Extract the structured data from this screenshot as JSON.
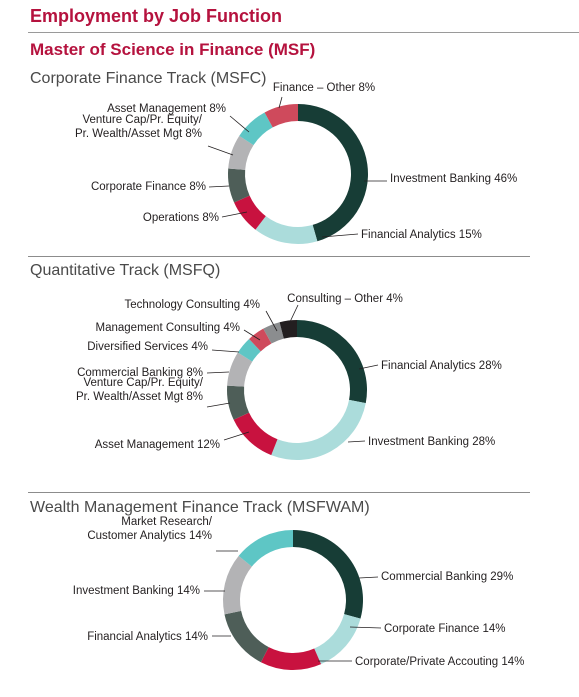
{
  "header": {
    "title": "Employment by Job Function",
    "program": "Master of Science in Finance (MSF)"
  },
  "colors": {
    "accent": "#b5123e",
    "dark_green": "#173d36",
    "light_teal": "#abdcdb",
    "crimson": "#c8123f",
    "gray_green": "#4e5e58",
    "gray": "#b3b3b5",
    "teal": "#5ec6c5",
    "rose": "#cf4a5c",
    "dark_gray": "#8b8d8f",
    "black": "#231f20"
  },
  "chart_data": [
    {
      "type": "pie",
      "title": "Corporate Finance Track (MSFC)",
      "slices": [
        {
          "label": "Investment Banking 46%",
          "value": 46,
          "color": "#173d36"
        },
        {
          "label": "Financial Analytics 15%",
          "value": 15,
          "color": "#abdcdb"
        },
        {
          "label": "Operations 8%",
          "value": 8,
          "color": "#c8123f"
        },
        {
          "label": "Corporate Finance 8%",
          "value": 8,
          "color": "#4e5e58"
        },
        {
          "label": "Venture Cap/Pr. Equity/\nPr. Wealth/Asset Mgt 8%",
          "value": 8,
          "color": "#b3b3b5"
        },
        {
          "label": "Asset Management 8%",
          "value": 8,
          "color": "#5ec6c5"
        },
        {
          "label": "Finance – Other 8%",
          "value": 8,
          "color": "#cf4a5c"
        }
      ]
    },
    {
      "type": "pie",
      "title": "Quantitative Track (MSFQ)",
      "slices": [
        {
          "label": "Financial Analytics 28%",
          "value": 28,
          "color": "#173d36"
        },
        {
          "label": "Investment Banking 28%",
          "value": 28,
          "color": "#abdcdb"
        },
        {
          "label": "Asset Management 12%",
          "value": 12,
          "color": "#c8123f"
        },
        {
          "label": "Venture Cap/Pr. Equity/\nPr. Wealth/Asset Mgt 8%",
          "value": 8,
          "color": "#4e5e58"
        },
        {
          "label": "Commercial Banking 8%",
          "value": 8,
          "color": "#b3b3b5"
        },
        {
          "label": "Diversified Services 4%",
          "value": 4,
          "color": "#5ec6c5"
        },
        {
          "label": "Management Consulting 4%",
          "value": 4,
          "color": "#cf4a5c"
        },
        {
          "label": "Technology Consulting 4%",
          "value": 4,
          "color": "#8b8d8f"
        },
        {
          "label": "Consulting – Other 4%",
          "value": 4,
          "color": "#231f20"
        }
      ]
    },
    {
      "type": "pie",
      "title": "Wealth Management Finance Track (MSFWAM)",
      "slices": [
        {
          "label": "Commercial Banking 29%",
          "value": 29,
          "color": "#173d36"
        },
        {
          "label": "Corporate Finance 14%",
          "value": 14,
          "color": "#abdcdb"
        },
        {
          "label": "Corporate/Private Accouting 14%",
          "value": 14,
          "color": "#c8123f"
        },
        {
          "label": "Financial Analytics 14%",
          "value": 14,
          "color": "#4e5e58"
        },
        {
          "label": "Investment Banking 14%",
          "value": 14,
          "color": "#b3b3b5"
        },
        {
          "label": "Market Research/\nCustomer Analytics 14%",
          "value": 14,
          "color": "#5ec6c5"
        }
      ]
    }
  ]
}
